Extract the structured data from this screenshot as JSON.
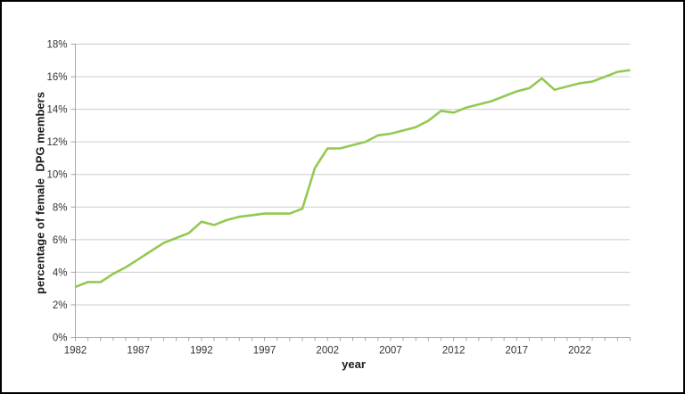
{
  "chart_data": {
    "type": "line",
    "title": "",
    "xlabel": "year",
    "ylabel": "percentage of female  DPG members",
    "x": [
      1982,
      1983,
      1984,
      1985,
      1986,
      1987,
      1988,
      1989,
      1990,
      1991,
      1992,
      1993,
      1994,
      1995,
      1996,
      1997,
      1998,
      1999,
      2000,
      2001,
      2002,
      2003,
      2004,
      2005,
      2006,
      2007,
      2008,
      2009,
      2010,
      2011,
      2012,
      2013,
      2014,
      2015,
      2016,
      2017,
      2018,
      2019,
      2020,
      2021,
      2022,
      2023,
      2024,
      2025,
      2026
    ],
    "values": [
      3.1,
      3.4,
      3.4,
      3.9,
      4.3,
      4.8,
      5.3,
      5.8,
      6.1,
      6.4,
      7.1,
      6.9,
      7.2,
      7.4,
      7.5,
      7.6,
      7.6,
      7.6,
      7.9,
      10.4,
      11.6,
      11.6,
      11.8,
      12.0,
      12.4,
      12.5,
      12.7,
      12.9,
      13.3,
      13.9,
      13.8,
      14.1,
      14.3,
      14.5,
      14.8,
      15.1,
      15.3,
      15.9,
      15.2,
      15.4,
      15.6,
      15.7,
      16.0,
      16.3,
      16.4
    ],
    "xlim": [
      1982,
      2026
    ],
    "ylim": [
      0,
      18
    ],
    "y_tick_step": 2,
    "y_tick_suffix": "%",
    "x_label_step": 5,
    "x_tick_labels": [
      "1982",
      "1987",
      "1992",
      "1997",
      "2002",
      "2007",
      "2012",
      "2017",
      "2022"
    ],
    "y_tick_labels": [
      "0%",
      "2%",
      "4%",
      "6%",
      "8%",
      "10%",
      "12%",
      "14%",
      "16%",
      "18%"
    ],
    "grid": true,
    "legend": "none",
    "line_color": "#93c952",
    "grid_color": "#cccccc",
    "axis_color": "#a6a6a6",
    "tick_label_color": "#333333"
  }
}
